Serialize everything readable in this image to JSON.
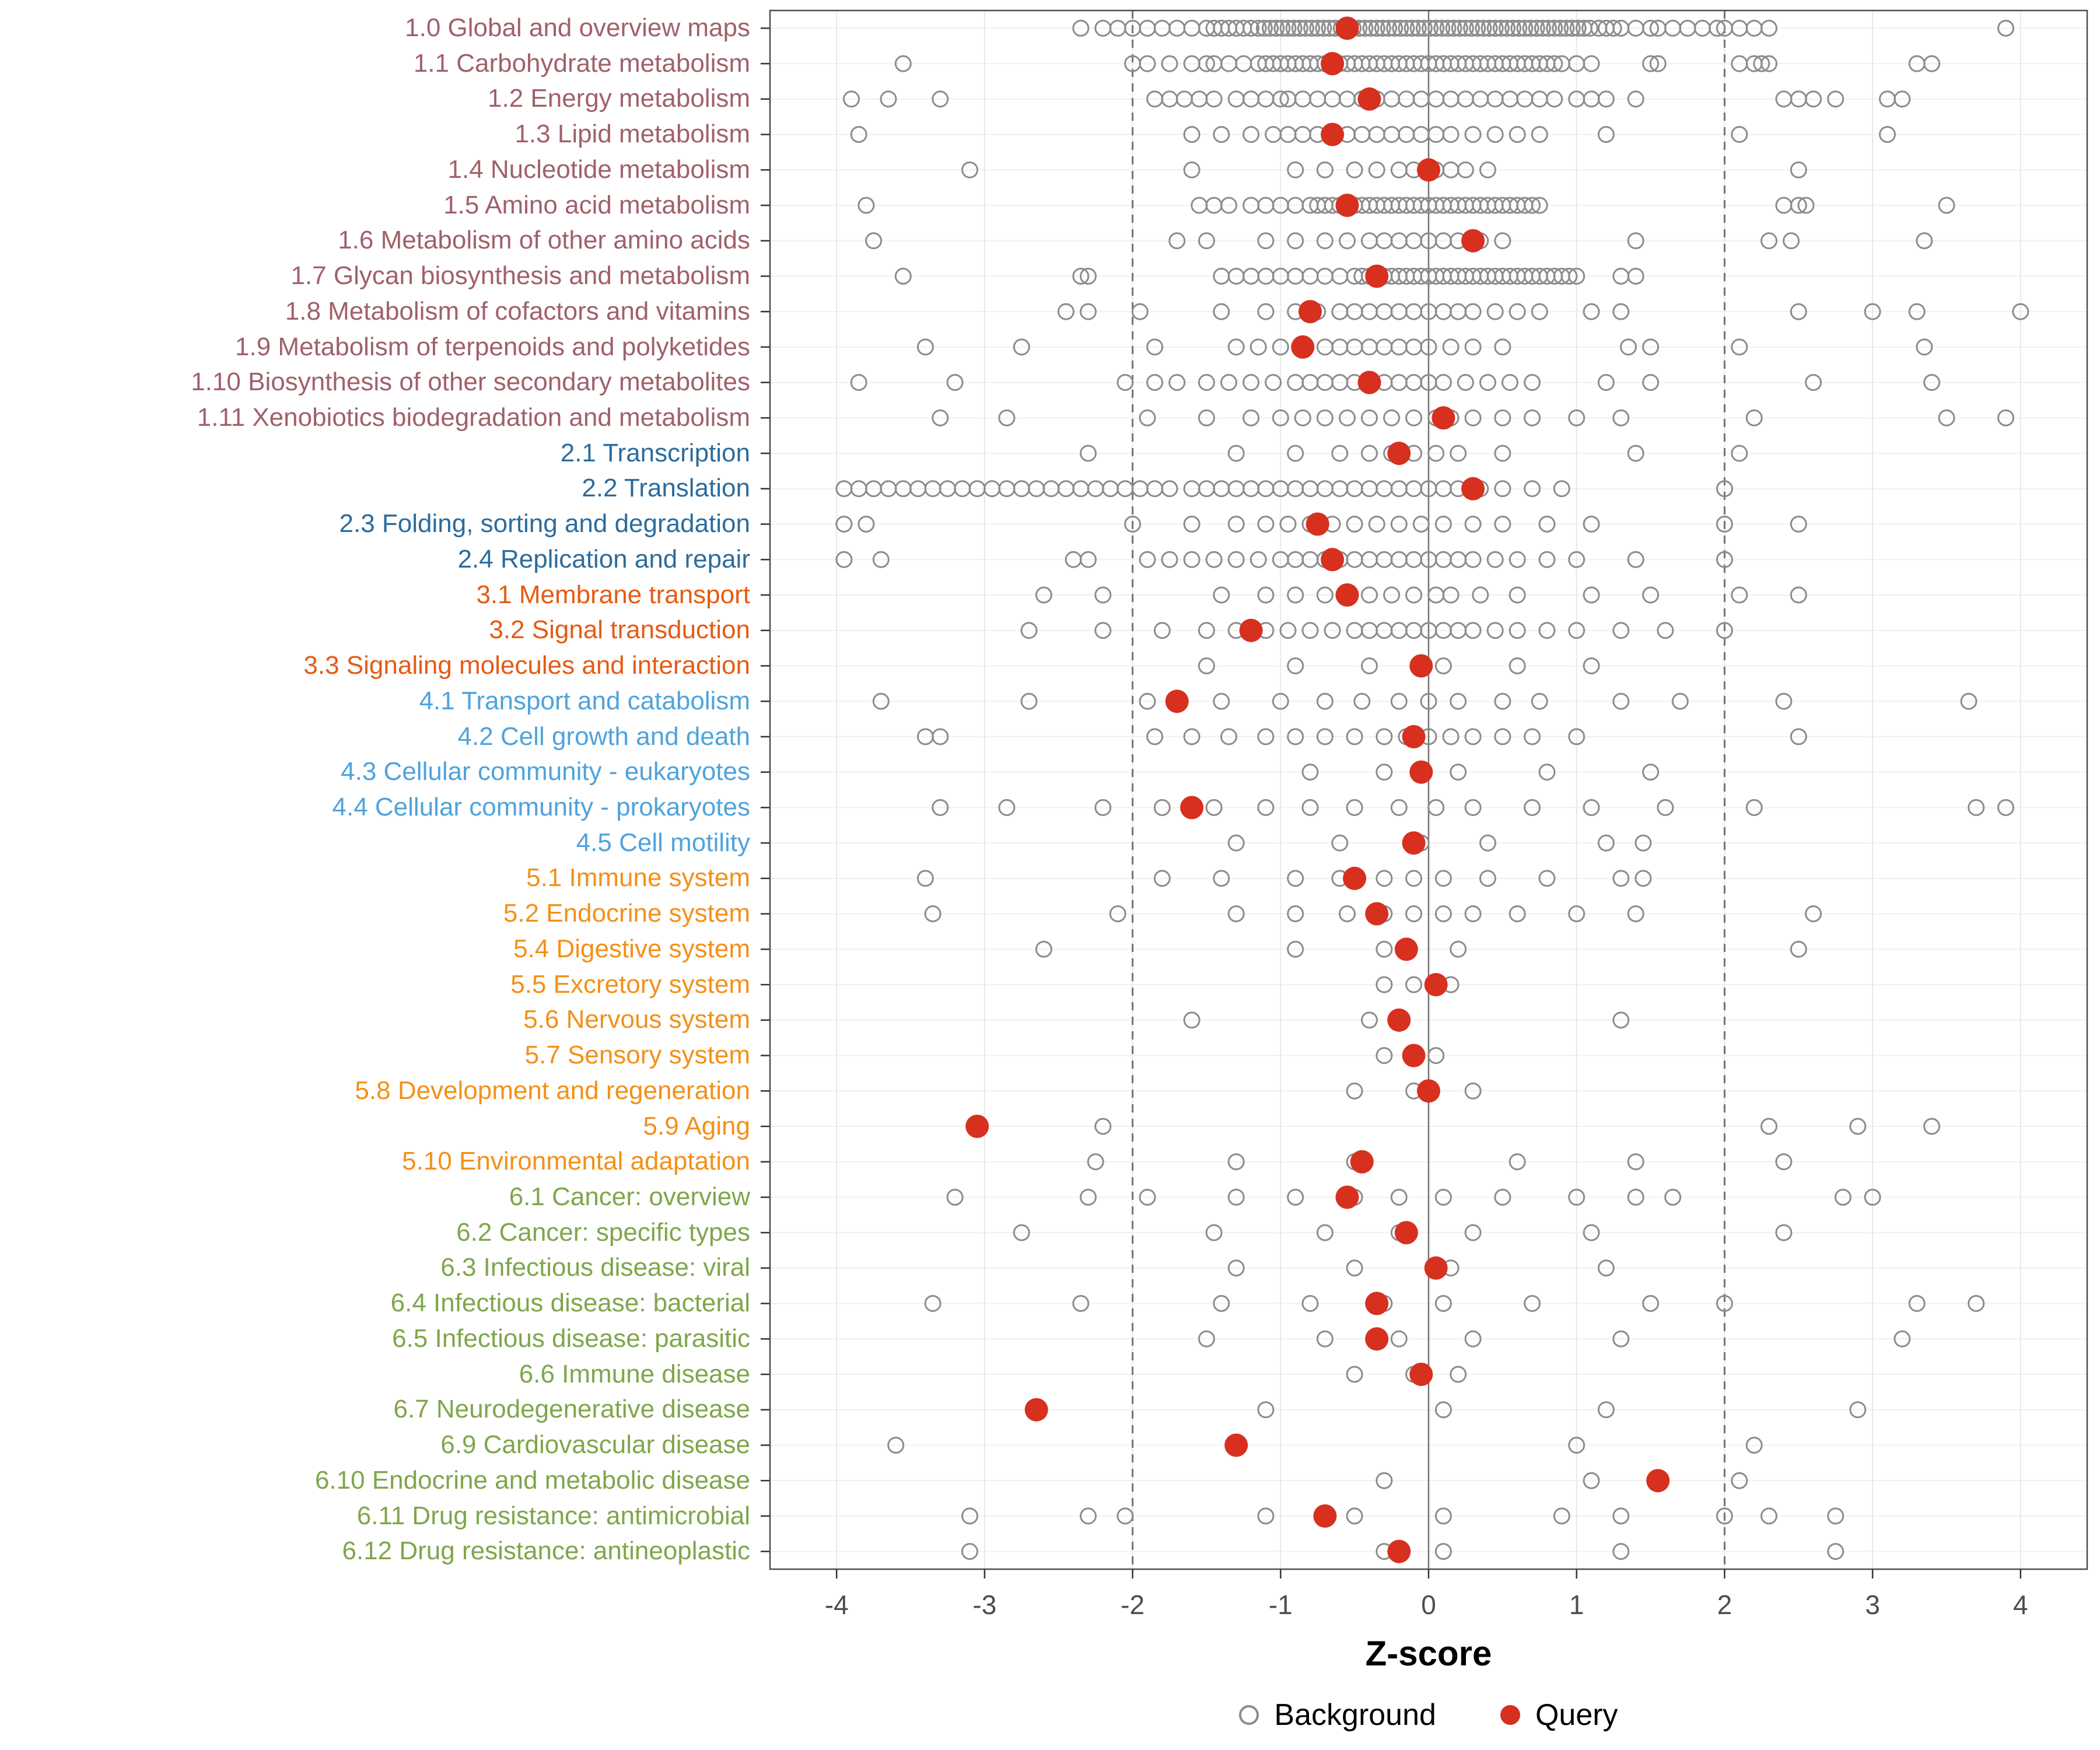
{
  "chart_data": {
    "type": "scatter",
    "title": "",
    "xlabel": "Z-score",
    "ylabel": "",
    "xlim": [
      -4.45,
      4.45
    ],
    "x_ticks": [
      -4,
      -3,
      -2,
      -1,
      0,
      1,
      2,
      3,
      4
    ],
    "reference_lines": {
      "solid": [
        0
      ],
      "dashed": [
        -2,
        2
      ]
    },
    "grid": "on",
    "legend_position": "bottom",
    "legend": [
      {
        "label": "Background",
        "type": "open"
      },
      {
        "label": "Query",
        "type": "filled"
      }
    ],
    "colors": {
      "query": "#d7301f",
      "background_stroke": "#8c8c8c",
      "groups": {
        "1": "#a0616a",
        "2": "#2c6c9c",
        "3": "#e55b13",
        "4": "#4fa3dc",
        "5": "#f39019",
        "6": "#7fa64b"
      }
    },
    "rows": [
      {
        "label": "1.0 Global and overview maps",
        "group": "1",
        "query": -0.55,
        "background_band": [
          -1.15,
          1.1,
          0.04
        ],
        "background": [
          -2.35,
          -2.2,
          -2.1,
          -2.0,
          -1.9,
          -1.8,
          -1.7,
          -1.6,
          -1.5,
          -1.45,
          -1.4,
          -1.35,
          -1.3,
          -1.25,
          -1.2,
          1.15,
          1.2,
          1.25,
          1.3,
          1.4,
          1.5,
          1.55,
          1.65,
          1.75,
          1.85,
          1.95,
          2.0,
          2.1,
          2.2,
          2.3,
          3.9
        ]
      },
      {
        "label": "1.1 Carbohydrate metabolism",
        "group": "1",
        "query": -0.65,
        "background_band": [
          -0.95,
          0.85,
          0.05
        ],
        "background": [
          -3.55,
          -2.0,
          -1.9,
          -1.75,
          -1.6,
          -1.5,
          -1.45,
          -1.35,
          -1.25,
          -1.15,
          -1.1,
          -1.05,
          -1.0,
          0.9,
          1.0,
          1.1,
          1.5,
          1.55,
          2.1,
          2.2,
          2.25,
          2.3,
          3.3,
          3.4
        ]
      },
      {
        "label": "1.2 Energy metabolism",
        "group": "1",
        "query": -0.4,
        "background_band": [
          -0.85,
          0.9,
          0.1
        ],
        "background": [
          -3.9,
          -3.65,
          -3.3,
          -1.85,
          -1.75,
          -1.65,
          -1.55,
          -1.45,
          -1.3,
          -1.2,
          -1.1,
          -1.0,
          -0.95,
          1.0,
          1.1,
          1.2,
          1.4,
          2.4,
          2.5,
          2.6,
          2.75,
          3.1,
          3.2
        ]
      },
      {
        "label": "1.3 Lipid metabolism",
        "group": "1",
        "query": -0.65,
        "background": [
          -3.85,
          -1.6,
          -1.4,
          -1.2,
          -1.05,
          -0.95,
          -0.85,
          -0.75,
          -0.65,
          -0.55,
          -0.45,
          -0.35,
          -0.25,
          -0.15,
          -0.05,
          0.05,
          0.15,
          0.3,
          0.45,
          0.6,
          0.75,
          1.2,
          2.1,
          3.1
        ]
      },
      {
        "label": "1.4 Nucleotide metabolism",
        "group": "1",
        "query": 0.0,
        "background": [
          -3.1,
          -1.6,
          -0.9,
          -0.7,
          -0.5,
          -0.35,
          -0.2,
          -0.1,
          0.05,
          0.15,
          0.25,
          0.4,
          2.5
        ]
      },
      {
        "label": "1.5 Amino acid metabolism",
        "group": "1",
        "query": -0.55,
        "background_band": [
          -0.8,
          0.75,
          0.05
        ],
        "background": [
          -3.8,
          -1.55,
          -1.45,
          -1.35,
          -1.2,
          -1.1,
          -1.0,
          -0.9,
          2.4,
          2.5,
          2.55,
          3.5
        ]
      },
      {
        "label": "1.6 Metabolism of other amino acids",
        "group": "1",
        "query": 0.3,
        "background": [
          -3.75,
          -1.7,
          -1.5,
          -1.1,
          -0.9,
          -0.7,
          -0.55,
          -0.4,
          -0.3,
          -0.2,
          -0.1,
          0.0,
          0.1,
          0.2,
          0.35,
          0.5,
          1.4,
          2.3,
          2.45,
          3.35
        ]
      },
      {
        "label": "1.7 Glycan biosynthesis and metabolism",
        "group": "1",
        "query": -0.35,
        "background_band": [
          -0.5,
          1.0,
          0.05
        ],
        "background": [
          -3.55,
          -2.35,
          -2.3,
          -1.4,
          -1.3,
          -1.2,
          -1.1,
          -1.0,
          -0.9,
          -0.8,
          -0.7,
          -0.6,
          1.3,
          1.4
        ]
      },
      {
        "label": "1.8 Metabolism of cofactors and vitamins",
        "group": "1",
        "query": -0.8,
        "background": [
          -2.45,
          -2.3,
          -1.95,
          -1.4,
          -1.1,
          -0.9,
          -0.75,
          -0.6,
          -0.5,
          -0.4,
          -0.3,
          -0.2,
          -0.1,
          0.0,
          0.1,
          0.2,
          0.3,
          0.45,
          0.6,
          0.75,
          1.1,
          1.3,
          2.5,
          3.0,
          3.3,
          4.0
        ]
      },
      {
        "label": "1.9 Metabolism of terpenoids and polyketides",
        "group": "1",
        "query": -0.85,
        "background": [
          -3.4,
          -2.75,
          -1.85,
          -1.3,
          -1.15,
          -1.0,
          -0.85,
          -0.7,
          -0.6,
          -0.5,
          -0.4,
          -0.3,
          -0.2,
          -0.1,
          0.0,
          0.15,
          0.3,
          0.5,
          1.35,
          1.5,
          2.1,
          3.35
        ]
      },
      {
        "label": "1.10 Biosynthesis of other secondary metabolites",
        "group": "1",
        "query": -0.4,
        "background": [
          -3.85,
          -3.2,
          -2.05,
          -1.85,
          -1.7,
          -1.5,
          -1.35,
          -1.2,
          -1.05,
          -0.9,
          -0.8,
          -0.7,
          -0.6,
          -0.5,
          -0.4,
          -0.3,
          -0.2,
          -0.1,
          0.0,
          0.1,
          0.25,
          0.4,
          0.55,
          0.7,
          1.2,
          1.5,
          2.6,
          3.4
        ]
      },
      {
        "label": "1.11 Xenobiotics biodegradation and metabolism",
        "group": "1",
        "query": 0.1,
        "background": [
          -3.3,
          -2.85,
          -1.9,
          -1.5,
          -1.2,
          -1.0,
          -0.85,
          -0.7,
          -0.55,
          -0.4,
          -0.25,
          -0.1,
          0.05,
          0.15,
          0.3,
          0.5,
          0.7,
          1.0,
          1.3,
          2.2,
          3.5,
          3.9
        ]
      },
      {
        "label": "2.1 Transcription",
        "group": "2",
        "query": -0.2,
        "background": [
          -2.3,
          -1.3,
          -0.9,
          -0.6,
          -0.4,
          -0.25,
          -0.1,
          0.05,
          0.2,
          0.5,
          1.4,
          2.1
        ]
      },
      {
        "label": "2.2 Translation",
        "group": "2",
        "query": 0.3,
        "background_band": [
          -3.95,
          -1.75,
          0.1
        ],
        "background": [
          -1.6,
          -1.5,
          -1.4,
          -1.3,
          -1.2,
          -1.1,
          -1.0,
          -0.9,
          -0.8,
          -0.7,
          -0.6,
          -0.5,
          -0.4,
          -0.3,
          -0.2,
          -0.1,
          0.0,
          0.1,
          0.2,
          0.35,
          0.5,
          0.7,
          0.9,
          2.0
        ]
      },
      {
        "label": "2.3 Folding, sorting and degradation",
        "group": "2",
        "query": -0.75,
        "background": [
          -3.95,
          -3.8,
          -2.0,
          -1.6,
          -1.3,
          -1.1,
          -0.95,
          -0.8,
          -0.65,
          -0.5,
          -0.35,
          -0.2,
          -0.05,
          0.1,
          0.3,
          0.5,
          0.8,
          1.1,
          2.0,
          2.5
        ]
      },
      {
        "label": "2.4 Replication and repair",
        "group": "2",
        "query": -0.65,
        "background": [
          -3.95,
          -3.7,
          -2.4,
          -2.3,
          -1.9,
          -1.75,
          -1.6,
          -1.45,
          -1.3,
          -1.15,
          -1.0,
          -0.9,
          -0.8,
          -0.7,
          -0.6,
          -0.5,
          -0.4,
          -0.3,
          -0.2,
          -0.1,
          0.0,
          0.1,
          0.2,
          0.3,
          0.45,
          0.6,
          0.8,
          1.0,
          1.4,
          2.0
        ]
      },
      {
        "label": "3.1 Membrane transport",
        "group": "3",
        "query": -0.55,
        "background": [
          -2.6,
          -2.2,
          -1.4,
          -1.1,
          -0.9,
          -0.7,
          -0.55,
          -0.4,
          -0.25,
          -0.1,
          0.05,
          0.15,
          0.35,
          0.6,
          1.1,
          1.5,
          2.1,
          2.5
        ]
      },
      {
        "label": "3.2 Signal transduction",
        "group": "3",
        "query": -1.2,
        "background": [
          -2.7,
          -2.2,
          -1.8,
          -1.5,
          -1.3,
          -1.1,
          -0.95,
          -0.8,
          -0.65,
          -0.5,
          -0.4,
          -0.3,
          -0.2,
          -0.1,
          0.0,
          0.1,
          0.2,
          0.3,
          0.45,
          0.6,
          0.8,
          1.0,
          1.3,
          1.6,
          2.0
        ]
      },
      {
        "label": "3.3 Signaling molecules and interaction",
        "group": "3",
        "query": -0.05,
        "background": [
          -1.5,
          -0.9,
          -0.4,
          0.1,
          0.6,
          1.1
        ]
      },
      {
        "label": "4.1 Transport and catabolism",
        "group": "4",
        "query": -1.7,
        "background": [
          -3.7,
          -2.7,
          -1.9,
          -1.4,
          -1.0,
          -0.7,
          -0.45,
          -0.2,
          0.0,
          0.2,
          0.5,
          0.75,
          1.3,
          1.7,
          2.4,
          3.65
        ]
      },
      {
        "label": "4.2 Cell growth and death",
        "group": "4",
        "query": -0.1,
        "background": [
          -3.4,
          -3.3,
          -1.85,
          -1.6,
          -1.35,
          -1.1,
          -0.9,
          -0.7,
          -0.5,
          -0.3,
          -0.15,
          0.0,
          0.15,
          0.3,
          0.5,
          0.7,
          1.0,
          2.5
        ]
      },
      {
        "label": "4.3 Cellular community - eukaryotes",
        "group": "4",
        "query": -0.05,
        "background": [
          -0.8,
          -0.3,
          0.2,
          0.8,
          1.5
        ]
      },
      {
        "label": "4.4 Cellular community - prokaryotes",
        "group": "4",
        "query": -1.6,
        "background": [
          -3.3,
          -2.85,
          -2.2,
          -1.8,
          -1.45,
          -1.1,
          -0.8,
          -0.5,
          -0.2,
          0.05,
          0.3,
          0.7,
          1.1,
          1.6,
          2.2,
          3.7,
          3.9
        ]
      },
      {
        "label": "4.5 Cell motility",
        "group": "4",
        "query": -0.1,
        "background": [
          -1.3,
          -0.6,
          -0.05,
          0.4,
          1.2,
          1.45
        ]
      },
      {
        "label": "5.1 Immune system",
        "group": "5",
        "query": -0.5,
        "background": [
          -3.4,
          -1.8,
          -1.4,
          -0.9,
          -0.6,
          -0.3,
          -0.1,
          0.1,
          0.4,
          0.8,
          1.3,
          1.45
        ]
      },
      {
        "label": "5.2 Endocrine system",
        "group": "5",
        "query": -0.35,
        "background": [
          -3.35,
          -2.1,
          -1.3,
          -0.9,
          -0.55,
          -0.3,
          -0.1,
          0.1,
          0.3,
          0.6,
          1.0,
          1.4,
          2.6
        ]
      },
      {
        "label": "5.4 Digestive system",
        "group": "5",
        "query": -0.15,
        "background": [
          -2.6,
          -0.9,
          -0.3,
          0.2,
          2.5
        ]
      },
      {
        "label": "5.5 Excretory system",
        "group": "5",
        "query": 0.05,
        "background": [
          -0.3,
          -0.1,
          0.15
        ]
      },
      {
        "label": "5.6 Nervous system",
        "group": "5",
        "query": -0.2,
        "background": [
          -1.6,
          -0.4,
          1.3
        ]
      },
      {
        "label": "5.7 Sensory system",
        "group": "5",
        "query": -0.1,
        "background": [
          -0.3,
          0.05
        ]
      },
      {
        "label": "5.8 Development and regeneration",
        "group": "5",
        "query": 0.0,
        "background": [
          -0.5,
          -0.1,
          0.3
        ]
      },
      {
        "label": "5.9 Aging",
        "group": "5",
        "query": -3.05,
        "background": [
          -2.2,
          2.3,
          2.9,
          3.4
        ]
      },
      {
        "label": "5.10 Environmental adaptation",
        "group": "5",
        "query": -0.45,
        "background": [
          -2.25,
          -1.3,
          -0.5,
          0.6,
          1.4,
          2.4
        ]
      },
      {
        "label": "6.1 Cancer: overview",
        "group": "6",
        "query": -0.55,
        "background": [
          -3.2,
          -2.3,
          -1.9,
          -1.3,
          -0.9,
          -0.5,
          -0.2,
          0.1,
          0.5,
          1.0,
          1.4,
          1.65,
          2.8,
          3.0
        ]
      },
      {
        "label": "6.2 Cancer: specific types",
        "group": "6",
        "query": -0.15,
        "background": [
          -2.75,
          -1.45,
          -0.7,
          -0.2,
          0.3,
          1.1,
          2.4
        ]
      },
      {
        "label": "6.3 Infectious disease: viral",
        "group": "6",
        "query": 0.05,
        "background": [
          -1.3,
          -0.5,
          0.15,
          1.2
        ]
      },
      {
        "label": "6.4 Infectious disease: bacterial",
        "group": "6",
        "query": -0.35,
        "background": [
          -3.35,
          -2.35,
          -1.4,
          -0.8,
          -0.3,
          0.1,
          0.7,
          1.5,
          2.0,
          3.3,
          3.7
        ]
      },
      {
        "label": "6.5 Infectious disease: parasitic",
        "group": "6",
        "query": -0.35,
        "background": [
          -1.5,
          -0.7,
          -0.2,
          0.3,
          1.3,
          3.2
        ]
      },
      {
        "label": "6.6 Immune disease",
        "group": "6",
        "query": -0.05,
        "background": [
          -0.5,
          -0.1,
          0.2
        ]
      },
      {
        "label": "6.7 Neurodegenerative disease",
        "group": "6",
        "query": -2.65,
        "background": [
          -1.1,
          0.1,
          1.2,
          2.9
        ]
      },
      {
        "label": "6.9 Cardiovascular disease",
        "group": "6",
        "query": -1.3,
        "background": [
          -3.6,
          1.0,
          2.2
        ]
      },
      {
        "label": "6.10 Endocrine and metabolic disease",
        "group": "6",
        "query": 1.55,
        "background": [
          -0.3,
          1.1,
          2.1
        ]
      },
      {
        "label": "6.11 Drug resistance: antimicrobial",
        "group": "6",
        "query": -0.7,
        "background": [
          -3.1,
          -2.3,
          -2.05,
          -1.1,
          -0.5,
          0.1,
          0.9,
          1.3,
          2.0,
          2.3,
          2.75
        ]
      },
      {
        "label": "6.12 Drug resistance: antineoplastic",
        "group": "6",
        "query": -0.2,
        "background": [
          -3.1,
          -0.3,
          0.1,
          1.3,
          2.75
        ]
      }
    ]
  }
}
